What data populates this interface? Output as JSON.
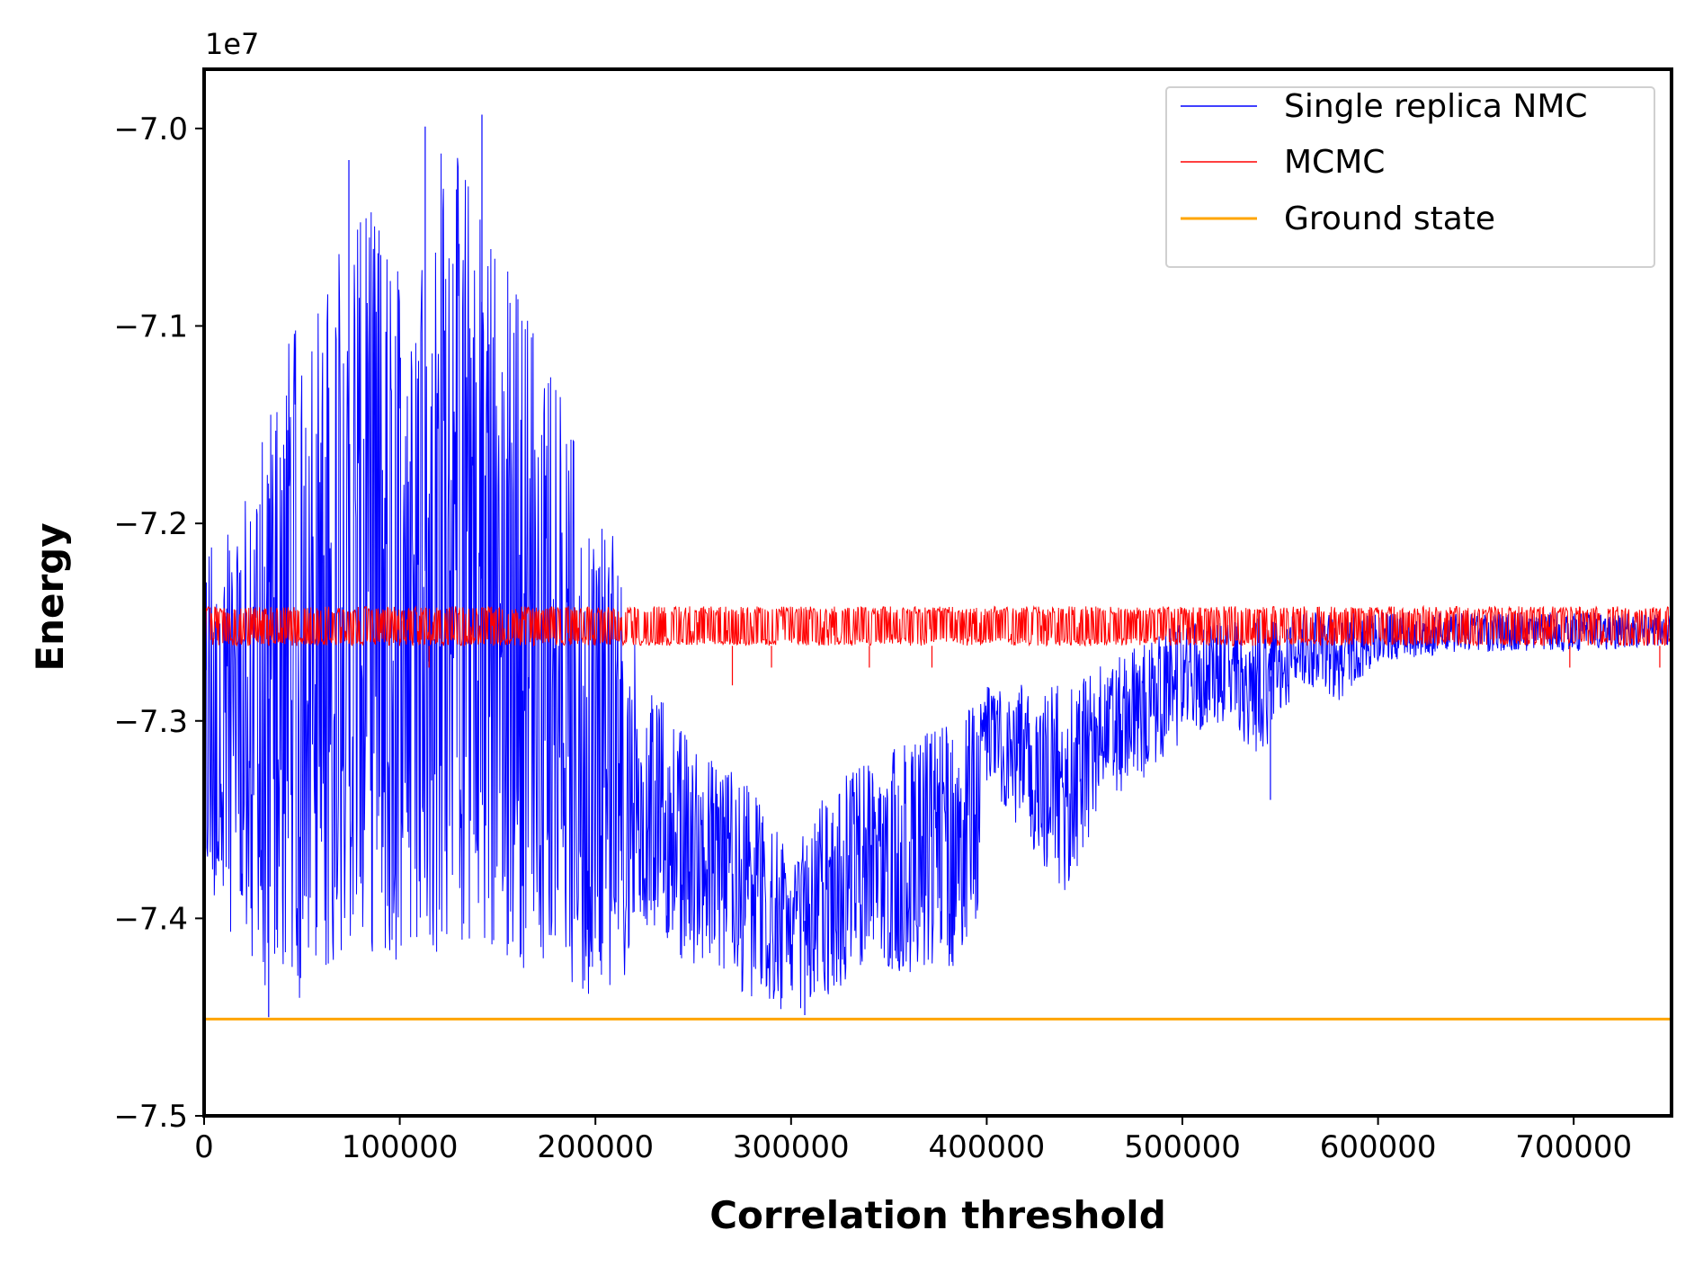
{
  "chart_data": {
    "type": "line",
    "title": "",
    "xlabel": "Correlation threshold",
    "ylabel": "Energy",
    "offset_label": "1e7",
    "xlim": [
      0,
      750000
    ],
    "ylim": [
      -7.5,
      -6.97
    ],
    "x_ticks": [
      0,
      100000,
      200000,
      300000,
      400000,
      500000,
      600000,
      700000
    ],
    "x_tick_labels": [
      "0",
      "100000",
      "200000",
      "300000",
      "400000",
      "500000",
      "600000",
      "700000"
    ],
    "y_ticks": [
      -7.5,
      -7.4,
      -7.3,
      -7.2,
      -7.1,
      -7.0
    ],
    "y_tick_labels": [
      "−7.5",
      "−7.4",
      "−7.3",
      "−7.2",
      "−7.1",
      "−7.0"
    ],
    "grid": false,
    "legend_position": "top-right",
    "series": [
      {
        "name": "Single replica NMC",
        "color": "#0000ff",
        "linewidth": 1,
        "style": "noisy-envelope",
        "note_units": "x in threshold units, y in units of 1e7",
        "envelope": {
          "x": [
            0,
            20000,
            40000,
            60000,
            80000,
            100000,
            120000,
            140000,
            160000,
            180000,
            200000,
            215000,
            220000,
            240000,
            260000,
            280000,
            300000,
            320000,
            340000,
            360000,
            380000,
            395000,
            400000,
            420000,
            440000,
            460000,
            480000,
            500000,
            520000,
            540000,
            560000,
            580000,
            600000,
            650000,
            700000,
            750000
          ],
          "high": [
            -7.21,
            -7.19,
            -7.11,
            -7.08,
            -7.03,
            -7.07,
            -7.0,
            -7.03,
            -7.08,
            -7.12,
            -7.2,
            -7.21,
            -7.26,
            -7.3,
            -7.32,
            -7.33,
            -7.37,
            -7.33,
            -7.32,
            -7.31,
            -7.3,
            -7.29,
            -7.28,
            -7.28,
            -7.28,
            -7.27,
            -7.26,
            -7.25,
            -7.25,
            -7.245,
            -7.245,
            -7.245,
            -7.245,
            -7.245,
            -7.245,
            -7.245
          ],
          "low": [
            -7.38,
            -7.42,
            -7.45,
            -7.43,
            -7.42,
            -7.43,
            -7.42,
            -7.42,
            -7.43,
            -7.43,
            -7.44,
            -7.43,
            -7.4,
            -7.42,
            -7.43,
            -7.44,
            -7.45,
            -7.44,
            -7.42,
            -7.43,
            -7.43,
            -7.4,
            -7.33,
            -7.36,
            -7.39,
            -7.34,
            -7.33,
            -7.31,
            -7.3,
            -7.32,
            -7.28,
            -7.29,
            -7.27,
            -7.265,
            -7.265,
            -7.262
          ]
        },
        "spikes": [
          {
            "x": 33000,
            "y": -7.45
          },
          {
            "x": 74000,
            "y": -7.016
          },
          {
            "x": 113000,
            "y": -6.999
          },
          {
            "x": 142000,
            "y": -6.993
          },
          {
            "x": 307000,
            "y": -7.449
          },
          {
            "x": 545000,
            "y": -7.34
          }
        ]
      },
      {
        "name": "MCMC",
        "color": "#ff0000",
        "linewidth": 1,
        "style": "noisy-band",
        "band": [
          -7.262,
          -7.242
        ],
        "dips": [
          {
            "x": 115000,
            "y": -7.273
          },
          {
            "x": 270000,
            "y": -7.282
          },
          {
            "x": 290000,
            "y": -7.273
          },
          {
            "x": 340000,
            "y": -7.273
          },
          {
            "x": 372000,
            "y": -7.273
          },
          {
            "x": 698000,
            "y": -7.273
          },
          {
            "x": 744000,
            "y": -7.273
          }
        ]
      },
      {
        "name": "Ground state",
        "color": "#ffa500",
        "linewidth": 1.5,
        "style": "constant",
        "y": -7.451
      }
    ]
  }
}
